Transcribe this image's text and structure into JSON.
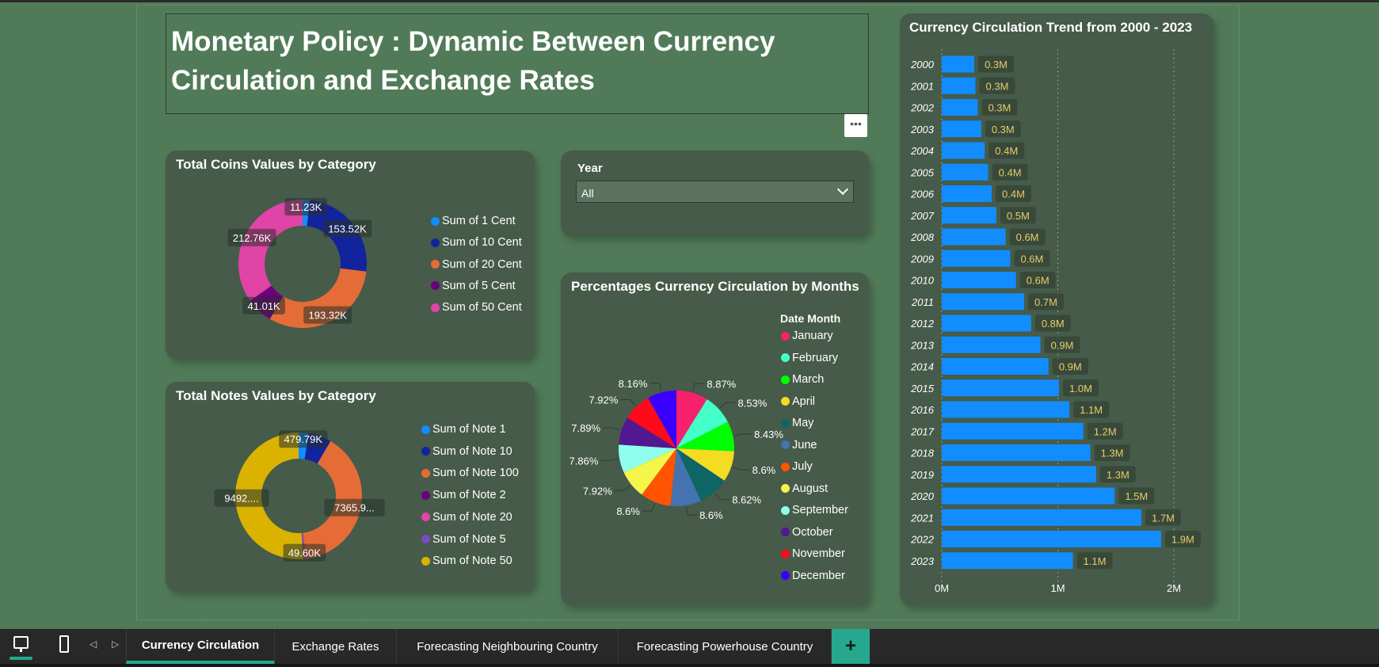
{
  "report": {
    "title": "Monetary Policy : Dynamic Between Currency Circulation and Exchange Rates",
    "more_options": "•••"
  },
  "coins": {
    "title": "Total Coins Values by Category",
    "slices": [
      {
        "label": "Sum of 1 Cent",
        "value": 11.23,
        "data_label": "11.23K",
        "color": "#118dff"
      },
      {
        "label": "Sum of 10 Cent",
        "value": 153.52,
        "data_label": "153.52K",
        "color": "#12239e"
      },
      {
        "label": "Sum of 20 Cent",
        "value": 193.32,
        "data_label": "193.32K",
        "color": "#e66c37"
      },
      {
        "label": "Sum of 5 Cent",
        "value": 41.01,
        "data_label": "41.01K",
        "color": "#6b007b"
      },
      {
        "label": "Sum of 50 Cent",
        "value": 212.76,
        "data_label": "212.76K",
        "color": "#e044a7"
      }
    ]
  },
  "notes": {
    "title": "Total Notes Values by Category",
    "slices": [
      {
        "label": "Sum of Note 1",
        "value": 479.79,
        "data_label": "479.79K",
        "color": "#118dff"
      },
      {
        "label": "Sum of Note 10",
        "value": 1080,
        "data_label": "",
        "color": "#12239e"
      },
      {
        "label": "Sum of Note 100",
        "value": 7365.9,
        "data_label": "7365.9...",
        "color": "#e66c37"
      },
      {
        "label": "Sum of Note 2",
        "value": 15,
        "data_label": "",
        "color": "#6b007b"
      },
      {
        "label": "Sum of Note 20",
        "value": 49.6,
        "data_label": "49.60K",
        "color": "#e044a7"
      },
      {
        "label": "Sum of Note 5",
        "value": 60,
        "data_label": "",
        "color": "#744ec2"
      },
      {
        "label": "Sum of Note 50",
        "value": 9492,
        "data_label": "9492....",
        "color": "#d9b300"
      }
    ]
  },
  "slicer": {
    "label": "Year",
    "value": "All"
  },
  "months": {
    "title": "Percentages Currency Circulation by Months",
    "legend_title": "Date Month",
    "slices": [
      {
        "label": "January",
        "value": 8.87,
        "data_label": "8.87%",
        "color": "#f7206d"
      },
      {
        "label": "February",
        "value": 8.53,
        "data_label": "8.53%",
        "color": "#45ffca"
      },
      {
        "label": "March",
        "value": 8.43,
        "data_label": "8.43%",
        "color": "#00ff00"
      },
      {
        "label": "April",
        "value": 8.6,
        "data_label": "8.6%",
        "color": "#f4dc23"
      },
      {
        "label": "May",
        "value": 8.62,
        "data_label": "8.62%",
        "color": "#0e6565"
      },
      {
        "label": "June",
        "value": 8.6,
        "data_label": "8.6%",
        "color": "#4473b0"
      },
      {
        "label": "July",
        "value": 8.6,
        "data_label": "8.6%",
        "color": "#ff5500"
      },
      {
        "label": "August",
        "value": 7.92,
        "data_label": "7.92%",
        "color": "#f5f54a"
      },
      {
        "label": "September",
        "value": 7.86,
        "data_label": "7.86%",
        "color": "#8effee"
      },
      {
        "label": "October",
        "value": 7.89,
        "data_label": "7.89%",
        "color": "#511891"
      },
      {
        "label": "November",
        "value": 7.92,
        "data_label": "7.92%",
        "color": "#ff0a1a"
      },
      {
        "label": "December",
        "value": 8.16,
        "data_label": "8.16%",
        "color": "#3a00ff"
      }
    ]
  },
  "chart_data": {
    "type": "bar",
    "orientation": "horizontal",
    "title": "Currency Circulation Trend from 2000 - 2023",
    "categories": [
      "2000",
      "2001",
      "2002",
      "2003",
      "2004",
      "2005",
      "2006",
      "2007",
      "2008",
      "2009",
      "2010",
      "2011",
      "2012",
      "2013",
      "2014",
      "2015",
      "2016",
      "2017",
      "2018",
      "2019",
      "2020",
      "2021",
      "2022",
      "2023"
    ],
    "values": [
      0.28,
      0.29,
      0.31,
      0.34,
      0.37,
      0.4,
      0.43,
      0.47,
      0.55,
      0.59,
      0.64,
      0.71,
      0.77,
      0.85,
      0.92,
      1.01,
      1.1,
      1.22,
      1.28,
      1.33,
      1.49,
      1.72,
      1.89,
      1.13
    ],
    "data_labels": [
      "0.3M",
      "0.3M",
      "0.3M",
      "0.3M",
      "0.4M",
      "0.4M",
      "0.4M",
      "0.5M",
      "0.6M",
      "0.6M",
      "0.6M",
      "0.7M",
      "0.8M",
      "0.9M",
      "0.9M",
      "1.0M",
      "1.1M",
      "1.2M",
      "1.3M",
      "1.3M",
      "1.5M",
      "1.7M",
      "1.9M",
      "1.1M"
    ],
    "x_ticks": [
      "0M",
      "1M",
      "2M"
    ],
    "xlim": [
      0,
      2
    ],
    "grid": true,
    "bar_color": "#118dff",
    "label_color": "#e8cd6a"
  },
  "tabs": {
    "items": [
      {
        "label": "Currency Circulation",
        "active": true
      },
      {
        "label": "Exchange Rates"
      },
      {
        "label": "Forecasting Neighbouring Country"
      },
      {
        "label": "Forecasting Powerhouse Country"
      }
    ],
    "add_label": "+"
  },
  "colors": {
    "background": "#517b58",
    "card": "#465b49",
    "accent": "#25a88e"
  }
}
